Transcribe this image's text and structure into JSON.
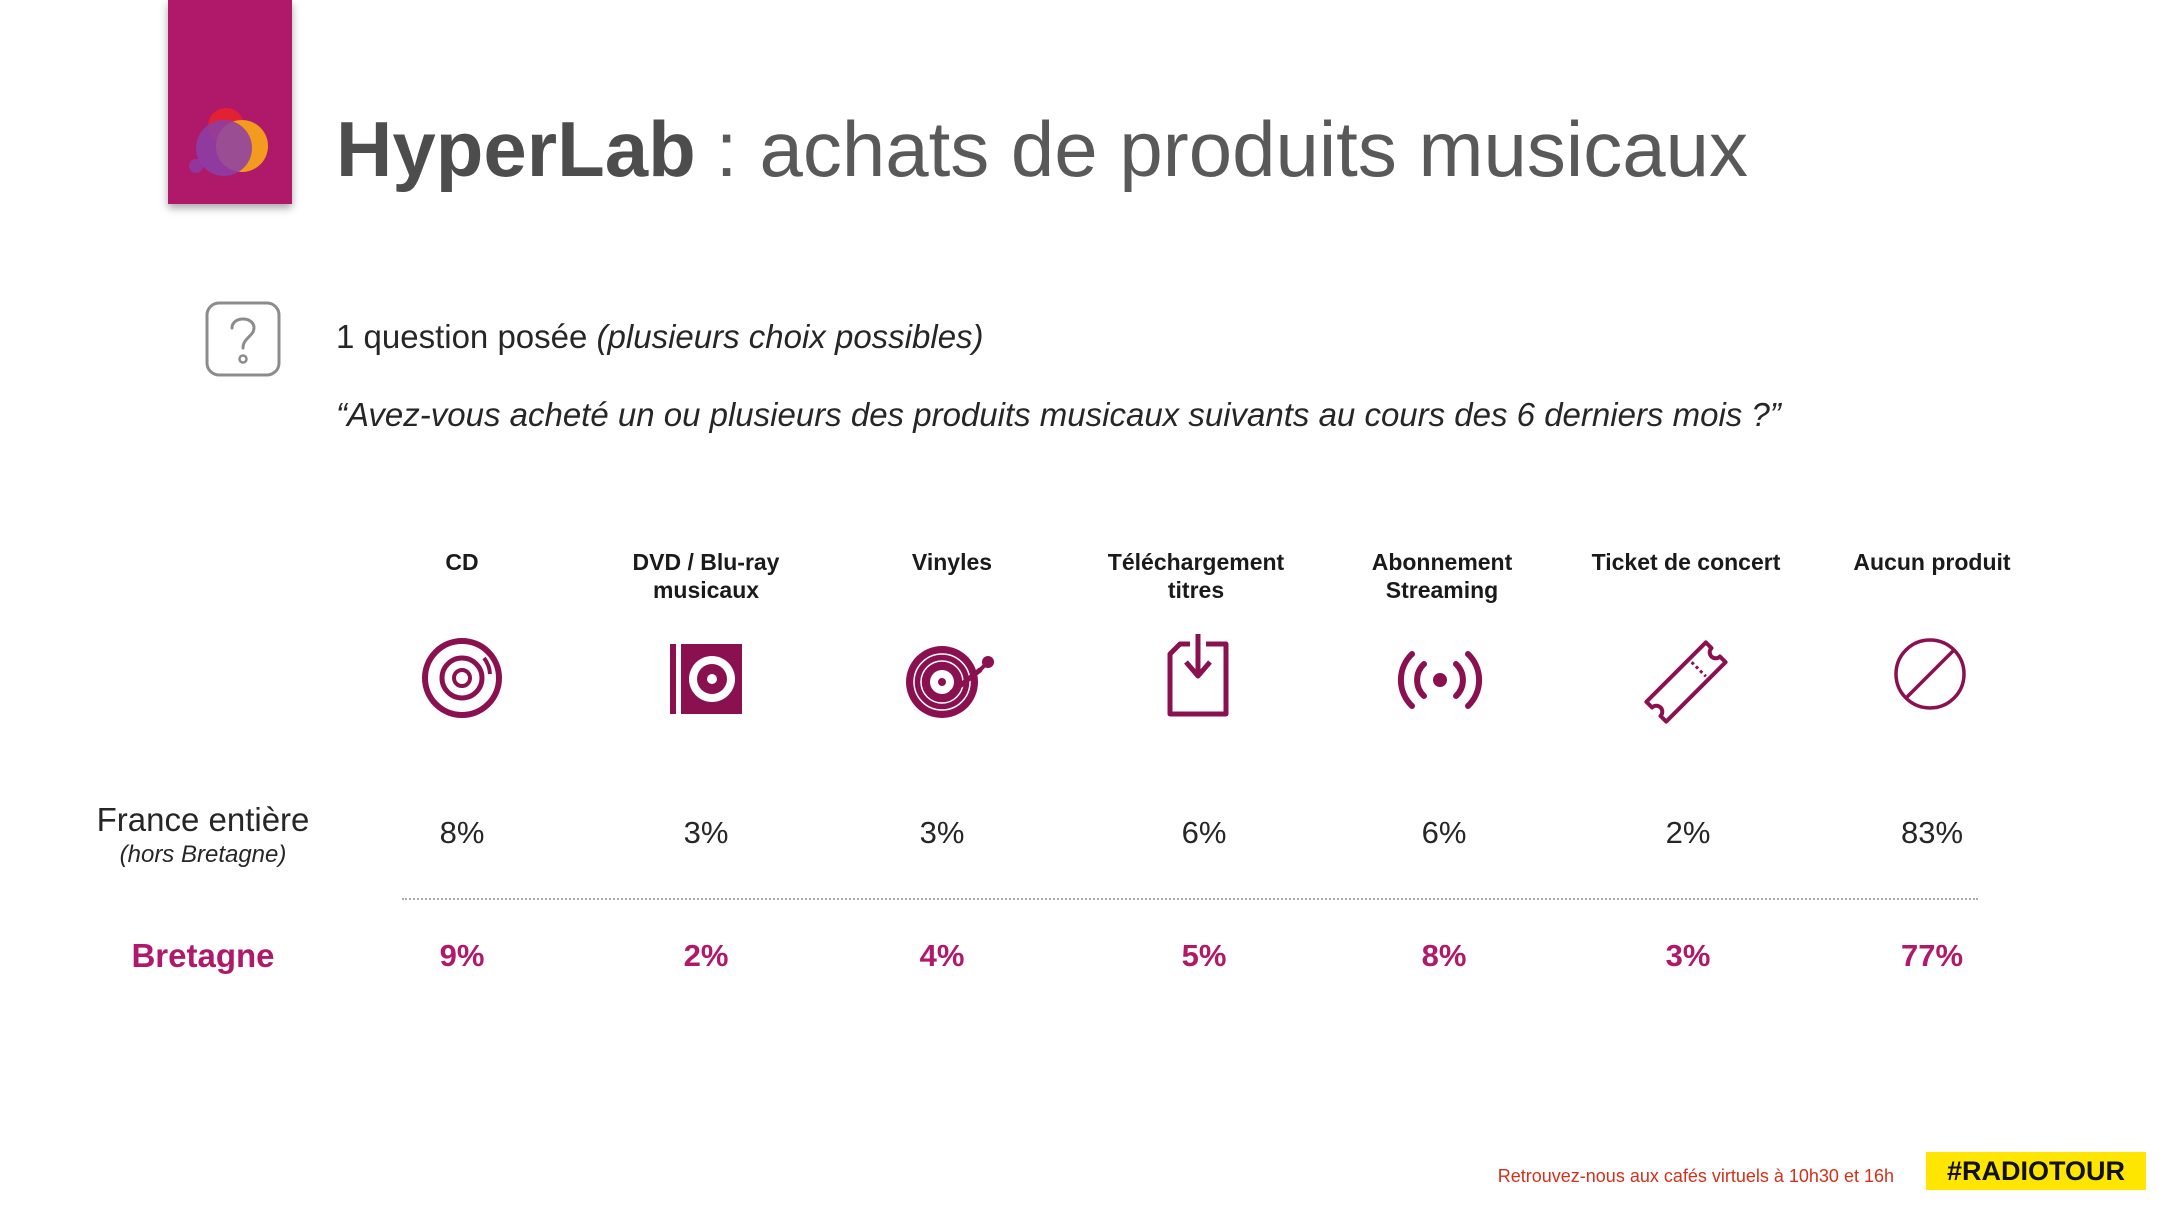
{
  "header": {
    "brand": "HyperLab",
    "separator": ":",
    "subtitle": "achats de produits musicaux"
  },
  "intro": {
    "question_prefix": "1 question posée",
    "question_note": "(plusieurs choix possibles)",
    "quote": "“Avez-vous acheté un ou plusieurs des produits musicaux suivants au cours des 6 derniers mois ?”"
  },
  "table": {
    "columns": [
      {
        "label_1": "CD",
        "label_2": "",
        "icon": "cd-icon"
      },
      {
        "label_1": "DVD / Blu-ray",
        "label_2": "musicaux",
        "icon": "dvd-case-icon"
      },
      {
        "label_1": "Vinyles",
        "label_2": "",
        "icon": "turntable-icon"
      },
      {
        "label_1": "Téléchargement",
        "label_2": "titres",
        "icon": "download-file-icon"
      },
      {
        "label_1": "Abonnement",
        "label_2": "Streaming",
        "icon": "broadcast-icon"
      },
      {
        "label_1": "Ticket de concert",
        "label_2": "",
        "icon": "ticket-icon"
      },
      {
        "label_1": "Aucun produit",
        "label_2": "",
        "icon": "no-symbol-icon"
      }
    ],
    "rows": [
      {
        "label": "France entière",
        "sublabel": "(hors Bretagne)",
        "values": [
          "8%",
          "3%",
          "3%",
          "6%",
          "6%",
          "2%",
          "83%"
        ]
      },
      {
        "label": "Bretagne",
        "sublabel": "",
        "values": [
          "9%",
          "2%",
          "4%",
          "5%",
          "8%",
          "3%",
          "77%"
        ]
      }
    ]
  },
  "footer": {
    "note": "Retrouvez-nous aux cafés virtuels à 10h30 et 16h",
    "hashtag": "#RADIOTOUR"
  },
  "colors": {
    "accent": "#b0186a",
    "icon": "#8a1050",
    "footer_text": "#d4301a",
    "hashtag_bg": "#ffe600"
  }
}
